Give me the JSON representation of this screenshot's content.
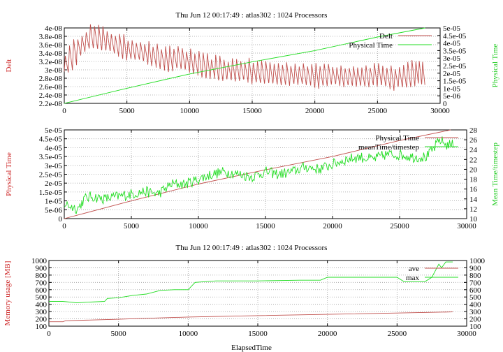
{
  "colors": {
    "red": "#c0504d",
    "green": "#22dd22",
    "axis": "#000000",
    "grid": "#a0a0a0",
    "red_label": "#cc2222",
    "green_label": "#22cc22"
  },
  "chart_data": [
    {
      "type": "line",
      "title": "Thu Jun 12 00:17:49 : atlas302 : 1024 Processors",
      "ylabel": "Delt",
      "y2label": "Physical Time",
      "xlim": [
        0,
        30000
      ],
      "ylim": [
        2.2e-08,
        4e-08
      ],
      "y2lim": [
        0,
        5e-05
      ],
      "x_ticks": [
        0,
        5000,
        10000,
        15000,
        20000,
        25000,
        30000
      ],
      "x_tick_labels": [
        "0",
        "5000",
        "10000",
        "15000",
        "20000",
        "25000",
        "30000"
      ],
      "y_ticks": [
        2.2e-08,
        2.4e-08,
        2.6e-08,
        2.8e-08,
        3e-08,
        3.2e-08,
        3.4e-08,
        3.6e-08,
        3.8e-08,
        4e-08
      ],
      "y_tick_labels": [
        "2.2e-08",
        "2.4e-08",
        "2.6e-08",
        "2.8e-08",
        "3e-08",
        "3.2e-08",
        "3.4e-08",
        "3.6e-08",
        "3.8e-08",
        "4e-08"
      ],
      "y2_ticks": [
        0,
        5e-06,
        1e-05,
        1.5e-05,
        2e-05,
        2.5e-05,
        3e-05,
        3.5e-05,
        4e-05,
        4.5e-05,
        5e-05
      ],
      "y2_tick_labels": [
        "0",
        "5e-06",
        "1e-05",
        "1.5e-05",
        "2e-05",
        "2.5e-05",
        "3e-05",
        "3.5e-05",
        "4e-05",
        "4.5e-05",
        "5e-05"
      ],
      "legend": [
        {
          "name": "Delt",
          "color": "red"
        },
        {
          "name": "Physical Time",
          "color": "green"
        }
      ],
      "grid": true,
      "series": [
        {
          "name": "Delt",
          "axis": "y",
          "color": "red",
          "x": [
            0,
            1000,
            2000,
            3000,
            4000,
            5000,
            6000,
            7000,
            8000,
            9000,
            10000,
            11000,
            12000,
            13000,
            14000,
            15000,
            16000,
            17000,
            18000,
            19000,
            20000,
            21000,
            22000,
            23000,
            24000,
            25000,
            26000,
            27000,
            28000,
            28800
          ],
          "y": [
            3.1e-08,
            3.5e-08,
            3.75e-08,
            3.7e-08,
            3.55e-08,
            3.45e-08,
            3.4e-08,
            3.3e-08,
            3.2e-08,
            3.25e-08,
            3.15e-08,
            3.05e-08,
            3e-08,
            2.95e-08,
            2.95e-08,
            2.9e-08,
            2.9e-08,
            2.85e-08,
            2.85e-08,
            2.85e-08,
            2.8e-08,
            2.85e-08,
            2.8e-08,
            2.8e-08,
            2.8e-08,
            2.85e-08,
            2.75e-08,
            2.8e-08,
            2.9e-08,
            2.85e-08
          ],
          "pattern": "sawtooth"
        },
        {
          "name": "Physical Time",
          "axis": "y2",
          "color": "green",
          "x": [
            0,
            5000,
            10000,
            15000,
            20000,
            25000,
            28800
          ],
          "y": [
            0,
            1e-05,
            1.95e-05,
            2.75e-05,
            3.5e-05,
            4.4e-05,
            5e-05
          ]
        }
      ]
    },
    {
      "type": "line",
      "title": "",
      "ylabel": "Physical Time",
      "y2label": "Mean Time/timestep",
      "xlim": [
        0,
        30000
      ],
      "ylim": [
        0,
        5e-05
      ],
      "y2lim": [
        10,
        28
      ],
      "x_ticks": [
        0,
        5000,
        10000,
        15000,
        20000,
        25000,
        30000
      ],
      "x_tick_labels": [
        "0",
        "5000",
        "10000",
        "15000",
        "20000",
        "25000",
        "30000"
      ],
      "y_ticks": [
        0,
        5e-06,
        1e-05,
        1.5e-05,
        2e-05,
        2.5e-05,
        3e-05,
        3.5e-05,
        4e-05,
        4.5e-05,
        5e-05
      ],
      "y_tick_labels": [
        "0",
        "5e-06",
        "1e-05",
        "1.5e-05",
        "2e-05",
        "2.5e-05",
        "3e-05",
        "3.5e-05",
        "4e-05",
        "4.5e-05",
        "5e-05"
      ],
      "y2_ticks": [
        10,
        12,
        14,
        16,
        18,
        20,
        22,
        24,
        26,
        28
      ],
      "y2_tick_labels": [
        "10",
        "12",
        "14",
        "16",
        "18",
        "20",
        "22",
        "24",
        "26",
        "28"
      ],
      "legend": [
        {
          "name": "Physical Time",
          "color": "red"
        },
        {
          "name": "meanTime/timestep",
          "color": "green"
        }
      ],
      "grid": true,
      "series": [
        {
          "name": "Physical Time",
          "axis": "y",
          "color": "red",
          "x": [
            0,
            5000,
            10000,
            15000,
            20000,
            25000,
            28800
          ],
          "y": [
            0,
            1e-05,
            1.95e-05,
            2.75e-05,
            3.5e-05,
            4.4e-05,
            5e-05
          ]
        },
        {
          "name": "meanTime/timestep",
          "axis": "y2",
          "color": "green",
          "x": [
            0,
            1000,
            1500,
            2000,
            3000,
            4000,
            5000,
            6000,
            7000,
            8000,
            9000,
            10000,
            11000,
            12000,
            13000,
            14000,
            15000,
            16000,
            17000,
            18000,
            19000,
            20000,
            21000,
            22000,
            23000,
            24000,
            25000,
            26000,
            27000,
            27500,
            28000,
            28500,
            29000
          ],
          "y": [
            13,
            12,
            14,
            14.5,
            14,
            14.5,
            15,
            15.5,
            15,
            17,
            17,
            18,
            19,
            19.5,
            19,
            18.5,
            19.5,
            19,
            19.5,
            20.5,
            20,
            21,
            22,
            22.5,
            22,
            23,
            23,
            22.5,
            22.5,
            24,
            26,
            25,
            25
          ],
          "noisy": true
        }
      ]
    },
    {
      "type": "line",
      "title": "Thu Jun 12 00:17:49 : atlas302 : 1024 Processors",
      "xlabel": "ElapsedTime",
      "ylabel": "Memory usage [MB]",
      "xlim": [
        0,
        30000
      ],
      "ylim": [
        100,
        1000
      ],
      "y2lim": [
        100,
        1000
      ],
      "x_ticks": [
        0,
        5000,
        10000,
        15000,
        20000,
        25000,
        30000
      ],
      "x_tick_labels": [
        "0",
        "5000",
        "10000",
        "15000",
        "20000",
        "25000",
        "30000"
      ],
      "y_ticks": [
        100,
        200,
        300,
        400,
        500,
        600,
        700,
        800,
        900,
        1000
      ],
      "y_tick_labels": [
        "100",
        "200",
        "300",
        "400",
        "500",
        "600",
        "700",
        "800",
        "900",
        "1000"
      ],
      "y2_ticks": [
        100,
        200,
        300,
        400,
        500,
        600,
        700,
        800,
        900,
        1000
      ],
      "y2_tick_labels": [
        "100",
        "200",
        "300",
        "400",
        "500",
        "600",
        "700",
        "800",
        "900",
        "1000"
      ],
      "legend": [
        {
          "name": "ave",
          "color": "red"
        },
        {
          "name": "max",
          "color": "green"
        }
      ],
      "grid": true,
      "series": [
        {
          "name": "ave",
          "axis": "y",
          "color": "red",
          "x": [
            0,
            1000,
            1200,
            5000,
            10000,
            15000,
            20000,
            25000,
            29000
          ],
          "y": [
            160,
            160,
            175,
            195,
            225,
            245,
            262,
            280,
            295
          ]
        },
        {
          "name": "max",
          "axis": "y",
          "color": "green",
          "x": [
            0,
            1000,
            2000,
            3000,
            4000,
            4200,
            5000,
            6000,
            7000,
            8000,
            9000,
            10000,
            10500,
            12000,
            13000,
            15000,
            18000,
            19500,
            20000,
            22000,
            25000,
            25500,
            27000,
            27500,
            28000,
            28200,
            28500,
            29000
          ],
          "y": [
            440,
            440,
            420,
            430,
            440,
            480,
            490,
            520,
            540,
            590,
            600,
            600,
            700,
            720,
            720,
            720,
            730,
            730,
            770,
            770,
            770,
            710,
            710,
            770,
            950,
            900,
            980,
            980
          ]
        }
      ]
    }
  ]
}
